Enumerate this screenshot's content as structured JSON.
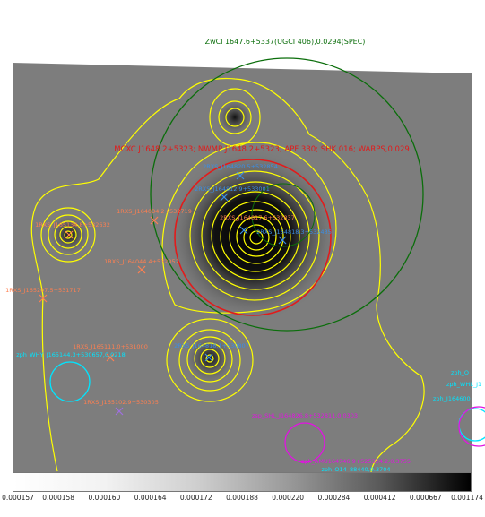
{
  "title": "ZwCl 1647.6+5337(UGCI 406),0.0294(SPEC)",
  "colors": {
    "contour": "#ffff00",
    "green_circle": "#0b6e0b",
    "red_circle": "#e21b1b",
    "cyan_circle": "#00e5ff",
    "magenta_circle": "#e015e0",
    "orange_source": "#ff7f50",
    "blue_source": "#3a8ee6"
  },
  "annotations": {
    "mcxc": "MCXC J1648.2+5323; NWMP J1648.2+5323; APF 330; SHK 016; WARPS,0.029",
    "rxs_top1": "2RXS_J164820.5+532854",
    "rxs_top2": "2RXS_J164812.9+533001",
    "rxs_center": "2RXS_J164817.6+532837",
    "rxs_center_right": "2RXS_J164818.3+532435",
    "rxs_left": "1RXS_J165134.8+532632",
    "rxs_mid1": "1RXS_J164034.2+532719",
    "rxs_mid2": "1RXS_J164044.4+532052",
    "rxs_farleft": "1RXS_J165207.5+531717",
    "rxs_lower": "1RXS_J165111.0+531000",
    "rxs_lower2": "1RXS_J165102.9+530305",
    "rxs_blob3": "2RXS_J164818.1+530807",
    "zph_why": "zph_WHY_J165144.3+530657,0.0218",
    "zph_o_right": "zph_O",
    "zph_whl_right": "zph_WHL_J1",
    "zph_j1646_right": "zph_J164600",
    "zsp_lower": "zsp_SHL_J164826.8+532811,0.0303",
    "zph_amu": "zph_AMU164746.9+525324.2,0.3755",
    "zph_o14": "zph_O14_88440,0.3704"
  },
  "colorbar": {
    "ticks": [
      "0.000157",
      "0.000158",
      "0.000160",
      "0.000164",
      "0.000172",
      "0.000188",
      "0.000220",
      "0.000284",
      "0.000412",
      "0.000667",
      "0.001174"
    ]
  }
}
